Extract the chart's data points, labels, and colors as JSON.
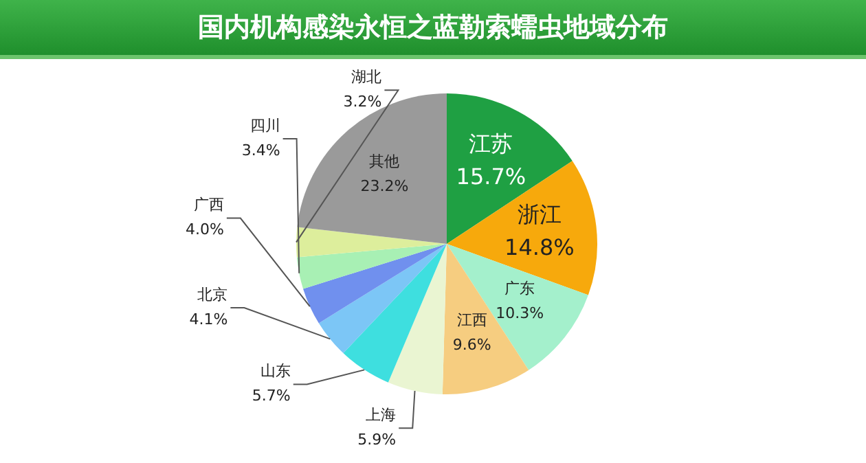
{
  "chart_data": {
    "type": "pie",
    "title": "国内机构感染永恒之蓝勒索蠕虫地域分布",
    "categories": [
      "江苏",
      "浙江",
      "广东",
      "江西",
      "上海",
      "山东",
      "北京",
      "广西",
      "四川",
      "湖北",
      "其他"
    ],
    "values": [
      15.7,
      14.8,
      10.3,
      9.6,
      5.9,
      5.7,
      4.1,
      4.0,
      3.4,
      3.2,
      23.2
    ],
    "value_labels": [
      "15.7%",
      "14.8%",
      "10.3%",
      "9.6%",
      "5.9%",
      "5.7%",
      "4.1%",
      "4.0%",
      "3.4%",
      "3.2%",
      "23.2%"
    ],
    "colors": [
      "#1fa043",
      "#f7a90c",
      "#a4f0cc",
      "#f6cd80",
      "#eaf5d2",
      "#3edfdf",
      "#7cc6f6",
      "#7090ee",
      "#a8f0b4",
      "#ddee9c",
      "#9a9a9a"
    ],
    "legend": false
  }
}
